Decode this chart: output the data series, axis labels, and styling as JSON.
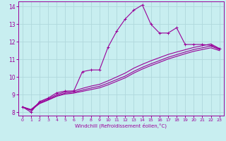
{
  "xlabel": "Windchill (Refroidissement éolien,°C)",
  "ylabel": "",
  "bg_color": "#c8eef0",
  "grid_color": "#b0d8dc",
  "line_color": "#990099",
  "xlim": [
    -0.5,
    23.5
  ],
  "ylim": [
    7.8,
    14.3
  ],
  "xticks": [
    0,
    1,
    2,
    3,
    4,
    5,
    6,
    7,
    8,
    9,
    10,
    11,
    12,
    13,
    14,
    15,
    16,
    17,
    18,
    19,
    20,
    21,
    22,
    23
  ],
  "yticks": [
    8,
    9,
    10,
    11,
    12,
    13,
    14
  ],
  "series_main": [
    8.3,
    8.0,
    8.6,
    8.8,
    9.1,
    9.2,
    9.2,
    10.3,
    10.4,
    10.4,
    11.7,
    12.6,
    13.3,
    13.8,
    14.1,
    13.0,
    12.5,
    12.5,
    12.8,
    11.85,
    11.85,
    11.85,
    11.8,
    11.6
  ],
  "series_smooth1": [
    8.3,
    8.15,
    8.55,
    8.75,
    9.0,
    9.15,
    9.2,
    9.35,
    9.48,
    9.58,
    9.78,
    10.0,
    10.22,
    10.5,
    10.72,
    10.92,
    11.1,
    11.28,
    11.42,
    11.55,
    11.68,
    11.78,
    11.88,
    11.62
  ],
  "series_smooth2": [
    8.3,
    8.12,
    8.5,
    8.7,
    8.93,
    9.08,
    9.13,
    9.25,
    9.37,
    9.47,
    9.65,
    9.85,
    10.05,
    10.32,
    10.55,
    10.75,
    10.93,
    11.12,
    11.27,
    11.42,
    11.56,
    11.66,
    11.76,
    11.56
  ],
  "series_smooth3": [
    8.3,
    8.1,
    8.48,
    8.68,
    8.9,
    9.03,
    9.08,
    9.18,
    9.28,
    9.38,
    9.55,
    9.75,
    9.95,
    10.22,
    10.45,
    10.65,
    10.83,
    11.02,
    11.17,
    11.32,
    11.46,
    11.56,
    11.66,
    11.5
  ]
}
